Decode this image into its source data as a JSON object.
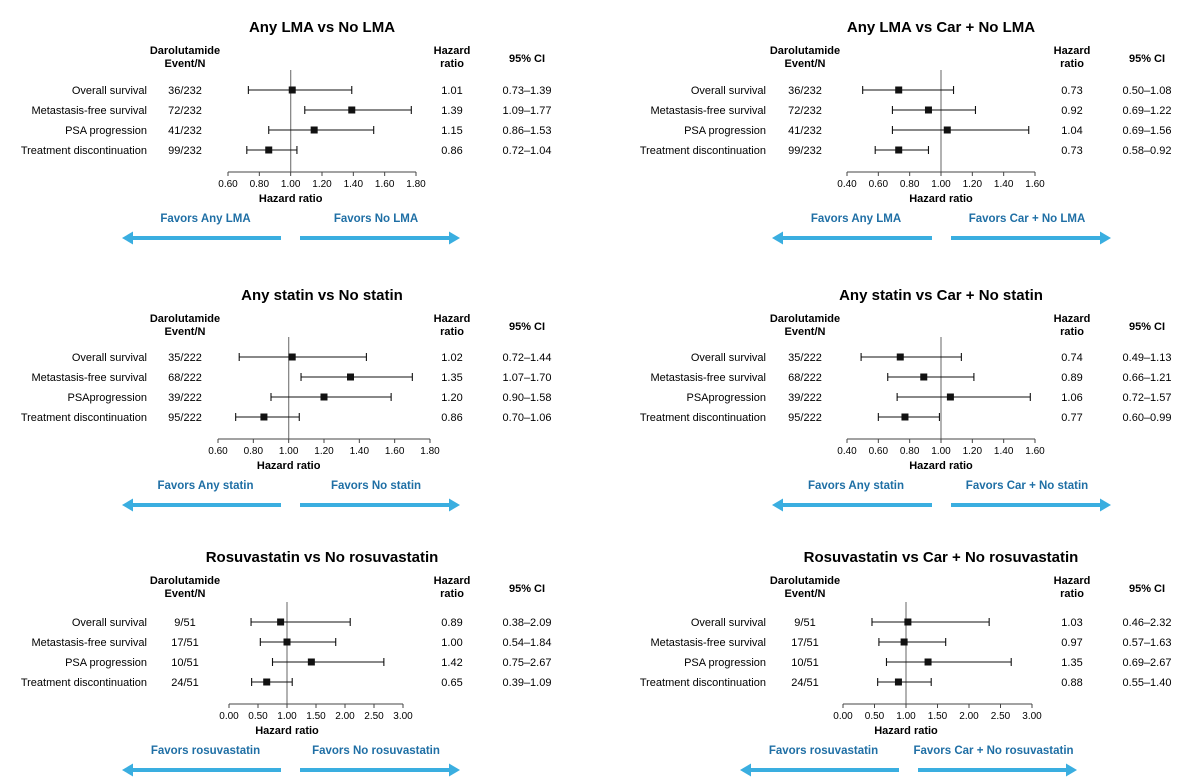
{
  "chart_data": [
    {
      "type": "forest",
      "title": "Any LMA vs No LMA",
      "col_headers": {
        "events": [
          "Darolutamide",
          "Event/N"
        ],
        "hr": [
          "Hazard",
          "ratio"
        ],
        "ci": "95% CI"
      },
      "xlabel": "Hazard ratio",
      "ticks": [
        "0.60",
        "0.80",
        "1.00",
        "1.20",
        "1.40",
        "1.60",
        "1.80"
      ],
      "xlim": [
        0.6,
        1.8
      ],
      "ref_line": 1.0,
      "favors": {
        "left": "Favors Any LMA",
        "right": "Favors No LMA"
      },
      "rows": [
        {
          "label": "Overall survival",
          "events": "36/232",
          "hr": 1.01,
          "lo": 0.73,
          "hi": 1.39,
          "hr_text": "1.01",
          "ci_text": "0.73–1.39"
        },
        {
          "label": "Metastasis-free survival",
          "events": "72/232",
          "hr": 1.39,
          "lo": 1.09,
          "hi": 1.77,
          "hr_text": "1.39",
          "ci_text": "1.09–1.77"
        },
        {
          "label": "PSA progression",
          "events": "41/232",
          "hr": 1.15,
          "lo": 0.86,
          "hi": 1.53,
          "hr_text": "1.15",
          "ci_text": "0.86–1.53"
        },
        {
          "label": "Treatment discontinuation",
          "events": "99/232",
          "hr": 0.86,
          "lo": 0.72,
          "hi": 1.04,
          "hr_text": "0.86",
          "ci_text": "0.72–1.04"
        }
      ]
    },
    {
      "type": "forest",
      "title": "Any LMA vs Car + No LMA",
      "col_headers": {
        "events": [
          "Darolutamide",
          "Event/N"
        ],
        "hr": [
          "Hazard",
          "ratio"
        ],
        "ci": "95% CI"
      },
      "xlabel": "Hazard ratio",
      "ticks": [
        "0.40",
        "0.60",
        "0.80",
        "1.00",
        "1.20",
        "1.40",
        "1.60"
      ],
      "xlim": [
        0.4,
        1.6
      ],
      "ref_line": 1.0,
      "favors": {
        "left": "Favors Any LMA",
        "right": "Favors Car + No LMA"
      },
      "rows": [
        {
          "label": "Overall survival",
          "events": "36/232",
          "hr": 0.73,
          "lo": 0.5,
          "hi": 1.08,
          "hr_text": "0.73",
          "ci_text": "0.50–1.08"
        },
        {
          "label": "Metastasis-free survival",
          "events": "72/232",
          "hr": 0.92,
          "lo": 0.69,
          "hi": 1.22,
          "hr_text": "0.92",
          "ci_text": "0.69–1.22"
        },
        {
          "label": "PSA progression",
          "events": "41/232",
          "hr": 1.04,
          "lo": 0.69,
          "hi": 1.56,
          "hr_text": "1.04",
          "ci_text": "0.69–1.56"
        },
        {
          "label": "Treatment discontinuation",
          "events": "99/232",
          "hr": 0.73,
          "lo": 0.58,
          "hi": 0.92,
          "hr_text": "0.73",
          "ci_text": "0.58–0.92"
        }
      ]
    },
    {
      "type": "forest",
      "title": "Any statin vs No statin",
      "col_headers": {
        "events": [
          "Darolutamide",
          "Event/N"
        ],
        "hr": [
          "Hazard",
          "ratio"
        ],
        "ci": "95% CI"
      },
      "xlabel": "Hazard ratio",
      "ticks": [
        "0.60",
        "0.80",
        "1.00",
        "1.20",
        "1.40",
        "1.60",
        "1.80"
      ],
      "xlim": [
        0.6,
        1.8
      ],
      "ref_line": 1.0,
      "favors": {
        "left": "Favors Any statin",
        "right": "Favors No statin"
      },
      "rows": [
        {
          "label": "Overall survival",
          "events": "35/222",
          "hr": 1.02,
          "lo": 0.72,
          "hi": 1.44,
          "hr_text": "1.02",
          "ci_text": "0.72–1.44"
        },
        {
          "label": "Metastasis-free survival",
          "events": "68/222",
          "hr": 1.35,
          "lo": 1.07,
          "hi": 1.7,
          "hr_text": "1.35",
          "ci_text": "1.07–1.70"
        },
        {
          "label": "PSAprogression",
          "events": "39/222",
          "hr": 1.2,
          "lo": 0.9,
          "hi": 1.58,
          "hr_text": "1.20",
          "ci_text": "0.90–1.58"
        },
        {
          "label": "Treatment discontinuation",
          "events": "95/222",
          "hr": 0.86,
          "lo": 0.7,
          "hi": 1.06,
          "hr_text": "0.86",
          "ci_text": "0.70–1.06"
        }
      ]
    },
    {
      "type": "forest",
      "title": "Any statin vs Car + No statin",
      "col_headers": {
        "events": [
          "Darolutamide",
          "Event/N"
        ],
        "hr": [
          "Hazard",
          "ratio"
        ],
        "ci": "95% CI"
      },
      "xlabel": "Hazard ratio",
      "ticks": [
        "0.40",
        "0.60",
        "0.80",
        "1.00",
        "1.20",
        "1.40",
        "1.60"
      ],
      "xlim": [
        0.4,
        1.6
      ],
      "ref_line": 1.0,
      "favors": {
        "left": "Favors Any statin",
        "right": "Favors Car + No statin"
      },
      "rows": [
        {
          "label": "Overall survival",
          "events": "35/222",
          "hr": 0.74,
          "lo": 0.49,
          "hi": 1.13,
          "hr_text": "0.74",
          "ci_text": "0.49–1.13"
        },
        {
          "label": "Metastasis-free survival",
          "events": "68/222",
          "hr": 0.89,
          "lo": 0.66,
          "hi": 1.21,
          "hr_text": "0.89",
          "ci_text": "0.66–1.21"
        },
        {
          "label": "PSAprogression",
          "events": "39/222",
          "hr": 1.06,
          "lo": 0.72,
          "hi": 1.57,
          "hr_text": "1.06",
          "ci_text": "0.72–1.57"
        },
        {
          "label": "Treatment discontinuation",
          "events": "95/222",
          "hr": 0.77,
          "lo": 0.6,
          "hi": 0.99,
          "hr_text": "0.77",
          "ci_text": "0.60–0.99"
        }
      ]
    },
    {
      "type": "forest",
      "title": "Rosuvastatin vs No rosuvastatin",
      "col_headers": {
        "events": [
          "Darolutamide",
          "Event/N"
        ],
        "hr": [
          "Hazard",
          "ratio"
        ],
        "ci": "95% CI"
      },
      "xlabel": "Hazard ratio",
      "ticks": [
        "0.00",
        "0.50",
        "1.00",
        "1.50",
        "2.00",
        "2.50",
        "3.00"
      ],
      "xlim": [
        0.0,
        3.0
      ],
      "ref_line": 1.0,
      "favors": {
        "left": "Favors rosuvastatin",
        "right": "Favors No rosuvastatin"
      },
      "rows": [
        {
          "label": "Overall survival",
          "events": "9/51",
          "hr": 0.89,
          "lo": 0.38,
          "hi": 2.09,
          "hr_text": "0.89",
          "ci_text": "0.38–2.09"
        },
        {
          "label": "Metastasis-free survival",
          "events": "17/51",
          "hr": 1.0,
          "lo": 0.54,
          "hi": 1.84,
          "hr_text": "1.00",
          "ci_text": "0.54–1.84"
        },
        {
          "label": "PSA progression",
          "events": "10/51",
          "hr": 1.42,
          "lo": 0.75,
          "hi": 2.67,
          "hr_text": "1.42",
          "ci_text": "0.75–2.67"
        },
        {
          "label": "Treatment discontinuation",
          "events": "24/51",
          "hr": 0.65,
          "lo": 0.39,
          "hi": 1.09,
          "hr_text": "0.65",
          "ci_text": "0.39–1.09"
        }
      ]
    },
    {
      "type": "forest",
      "title": "Rosuvastatin vs Car + No rosuvastatin",
      "col_headers": {
        "events": [
          "Darolutamide",
          "Event/N"
        ],
        "hr": [
          "Hazard",
          "ratio"
        ],
        "ci": "95% CI"
      },
      "xlabel": "Hazard ratio",
      "ticks": [
        "0.00",
        "0.50",
        "1.00",
        "1.50",
        "2.00",
        "2.50",
        "3.00"
      ],
      "xlim": [
        0.0,
        3.0
      ],
      "ref_line": 1.0,
      "favors": {
        "left": "Favors rosuvastatin",
        "right": "Favors Car + No rosuvastatin"
      },
      "rows": [
        {
          "label": "Overall survival",
          "events": "9/51",
          "hr": 1.03,
          "lo": 0.46,
          "hi": 2.32,
          "hr_text": "1.03",
          "ci_text": "0.46–2.32"
        },
        {
          "label": "Metastasis-free survival",
          "events": "17/51",
          "hr": 0.97,
          "lo": 0.57,
          "hi": 1.63,
          "hr_text": "0.97",
          "ci_text": "0.57–1.63"
        },
        {
          "label": "PSA progression",
          "events": "10/51",
          "hr": 1.35,
          "lo": 0.69,
          "hi": 2.67,
          "hr_text": "1.35",
          "ci_text": "0.69–2.67"
        },
        {
          "label": "Treatment discontinuation",
          "events": "24/51",
          "hr": 0.88,
          "lo": 0.55,
          "hi": 1.4,
          "hr_text": "0.88",
          "ci_text": "0.55–1.40"
        }
      ]
    }
  ],
  "colors": {
    "arrow": "#3aaee0",
    "favor_text": "#1f6fa5",
    "axis": "#444444",
    "ref_line": "#888888",
    "marker": "#111111"
  }
}
